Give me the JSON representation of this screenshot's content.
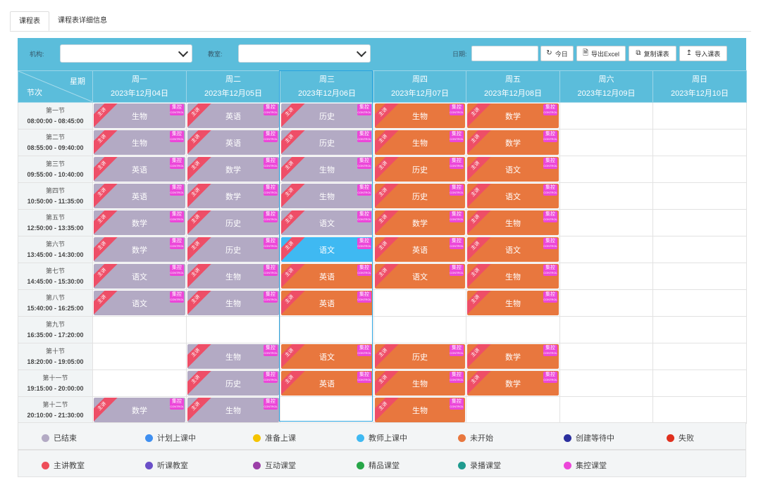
{
  "tabs": [
    {
      "label": "课程表"
    },
    {
      "label": "课程表详细信息"
    }
  ],
  "toolbar": {
    "org_label": "机构:",
    "room_label": "教室:",
    "date_label": "日期:",
    "btn_today": "今日",
    "btn_export": "导出Excel",
    "btn_copy": "复制课表",
    "btn_import": "导入课表"
  },
  "header": {
    "corner_week": "星期",
    "corner_period": "节次",
    "days": [
      {
        "name": "周一",
        "date": "2023年12月04日"
      },
      {
        "name": "周二",
        "date": "2023年12月05日"
      },
      {
        "name": "周三",
        "date": "2023年12月06日"
      },
      {
        "name": "周四",
        "date": "2023年12月07日"
      },
      {
        "name": "周五",
        "date": "2023年12月08日"
      },
      {
        "name": "周六",
        "date": "2023年12月09日"
      },
      {
        "name": "周日",
        "date": "2023年12月10日"
      }
    ]
  },
  "badge": {
    "main": "主讲",
    "ctrl": "集控",
    "ctrl_en": "CONTROL"
  },
  "colors": {
    "ended": "#b3aac4",
    "pending": "#e8773e",
    "teaching": "#3fb9f2",
    "header": "#5bbddb"
  },
  "rows": [
    {
      "period": "第一节",
      "time": "08:00:00 - 08:45:00",
      "cells": [
        {
          "s": "生物",
          "st": "ended"
        },
        {
          "s": "英语",
          "st": "ended"
        },
        {
          "s": "历史",
          "st": "ended"
        },
        {
          "s": "生物",
          "st": "pending"
        },
        {
          "s": "数学",
          "st": "pending"
        },
        null,
        null
      ]
    },
    {
      "period": "第二节",
      "time": "08:55:00 - 09:40:00",
      "cells": [
        {
          "s": "生物",
          "st": "ended"
        },
        {
          "s": "英语",
          "st": "ended"
        },
        {
          "s": "历史",
          "st": "ended"
        },
        {
          "s": "生物",
          "st": "pending"
        },
        {
          "s": "数学",
          "st": "pending"
        },
        null,
        null
      ]
    },
    {
      "period": "第三节",
      "time": "09:55:00 - 10:40:00",
      "cells": [
        {
          "s": "英语",
          "st": "ended"
        },
        {
          "s": "数学",
          "st": "ended"
        },
        {
          "s": "生物",
          "st": "ended"
        },
        {
          "s": "历史",
          "st": "pending"
        },
        {
          "s": "语文",
          "st": "pending"
        },
        null,
        null
      ]
    },
    {
      "period": "第四节",
      "time": "10:50:00 - 11:35:00",
      "cells": [
        {
          "s": "英语",
          "st": "ended"
        },
        {
          "s": "数学",
          "st": "ended"
        },
        {
          "s": "生物",
          "st": "ended"
        },
        {
          "s": "历史",
          "st": "pending"
        },
        {
          "s": "语文",
          "st": "pending"
        },
        null,
        null
      ]
    },
    {
      "period": "第五节",
      "time": "12:50:00 - 13:35:00",
      "cells": [
        {
          "s": "数学",
          "st": "ended"
        },
        {
          "s": "历史",
          "st": "ended"
        },
        {
          "s": "语文",
          "st": "ended"
        },
        {
          "s": "数学",
          "st": "pending"
        },
        {
          "s": "生物",
          "st": "pending"
        },
        null,
        null
      ]
    },
    {
      "period": "第六节",
      "time": "13:45:00 - 14:30:00",
      "cells": [
        {
          "s": "数学",
          "st": "ended"
        },
        {
          "s": "历史",
          "st": "ended"
        },
        {
          "s": "语文",
          "st": "teaching"
        },
        {
          "s": "英语",
          "st": "pending"
        },
        {
          "s": "语文",
          "st": "pending"
        },
        null,
        null
      ]
    },
    {
      "period": "第七节",
      "time": "14:45:00 - 15:30:00",
      "cells": [
        {
          "s": "语文",
          "st": "ended"
        },
        {
          "s": "生物",
          "st": "ended"
        },
        {
          "s": "英语",
          "st": "pending"
        },
        {
          "s": "语文",
          "st": "pending"
        },
        {
          "s": "生物",
          "st": "pending"
        },
        null,
        null
      ]
    },
    {
      "period": "第八节",
      "time": "15:40:00 - 16:25:00",
      "cells": [
        {
          "s": "语文",
          "st": "ended"
        },
        {
          "s": "生物",
          "st": "ended"
        },
        {
          "s": "英语",
          "st": "pending"
        },
        null,
        {
          "s": "生物",
          "st": "pending"
        },
        null,
        null
      ]
    },
    {
      "period": "第九节",
      "time": "16:35:00 - 17:20:00",
      "cells": [
        null,
        null,
        null,
        null,
        null,
        null,
        null
      ]
    },
    {
      "period": "第十节",
      "time": "18:20:00 - 19:05:00",
      "cells": [
        null,
        {
          "s": "生物",
          "st": "ended"
        },
        {
          "s": "语文",
          "st": "pending"
        },
        {
          "s": "历史",
          "st": "pending"
        },
        {
          "s": "数学",
          "st": "pending"
        },
        null,
        null
      ]
    },
    {
      "period": "第十一节",
      "time": "19:15:00 - 20:00:00",
      "cells": [
        null,
        {
          "s": "历史",
          "st": "ended"
        },
        {
          "s": "英语",
          "st": "pending"
        },
        {
          "s": "生物",
          "st": "pending"
        },
        {
          "s": "数学",
          "st": "pending"
        },
        null,
        null
      ]
    },
    {
      "period": "第十二节",
      "time": "20:10:00 - 21:30:00",
      "cells": [
        {
          "s": "数学",
          "st": "ended"
        },
        {
          "s": "生物",
          "st": "ended"
        },
        null,
        {
          "s": "生物",
          "st": "pending"
        },
        null,
        null,
        null
      ]
    }
  ],
  "legend_rows": [
    [
      {
        "label": "已结束",
        "color": "#b3aac4"
      },
      {
        "label": "计划上课中",
        "color": "#3f8ff0"
      },
      {
        "label": "准备上课",
        "color": "#f5c400"
      },
      {
        "label": "教师上课中",
        "color": "#3fb9f2"
      },
      {
        "label": "未开始",
        "color": "#e8773e"
      },
      {
        "label": "创建等待中",
        "color": "#2b2f9e"
      },
      {
        "label": "失败",
        "color": "#e0301e"
      }
    ],
    [
      {
        "label": "主讲教室",
        "color": "#ee4e5a"
      },
      {
        "label": "听课教室",
        "color": "#6a4fc8"
      },
      {
        "label": "互动课堂",
        "color": "#9b3fa8"
      },
      {
        "label": "精品课堂",
        "color": "#27a648"
      },
      {
        "label": "录播课堂",
        "color": "#1f9b8f"
      },
      {
        "label": "集控课堂",
        "color": "#ec46d9"
      }
    ]
  ]
}
